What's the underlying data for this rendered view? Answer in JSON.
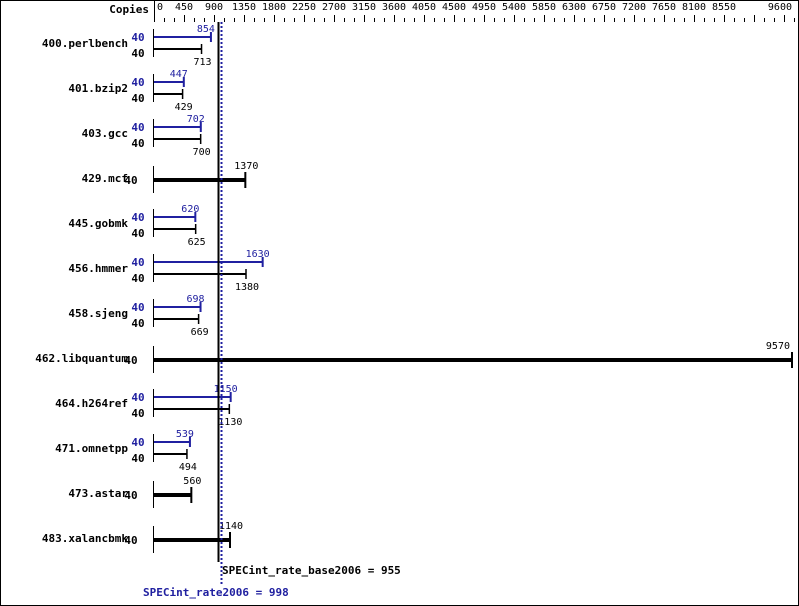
{
  "chart_data": {
    "type": "bar",
    "orientation": "horizontal",
    "axis_label": "Copies",
    "xlim": [
      0,
      9600
    ],
    "ticks": [
      0,
      450,
      900,
      1350,
      1800,
      2250,
      2700,
      3150,
      3600,
      4050,
      4500,
      4950,
      5400,
      5850,
      6300,
      6750,
      7200,
      7650,
      8100,
      8550,
      9600
    ],
    "colors": {
      "base": "#000000",
      "peak": "#2020a0"
    },
    "benchmarks": [
      {
        "name": "400.perlbench",
        "peak_copies": "40",
        "peak": 854,
        "base_copies": "40",
        "base": 713
      },
      {
        "name": "401.bzip2",
        "peak_copies": "40",
        "peak": 447,
        "base_copies": "40",
        "base": 429
      },
      {
        "name": "403.gcc",
        "peak_copies": "40",
        "peak": 702,
        "base_copies": "40",
        "base": 700
      },
      {
        "name": "429.mcf",
        "base_copies": "40",
        "base": 1370
      },
      {
        "name": "445.gobmk",
        "peak_copies": "40",
        "peak": 620,
        "base_copies": "40",
        "base": 625
      },
      {
        "name": "456.hmmer",
        "peak_copies": "40",
        "peak": 1630,
        "base_copies": "40",
        "base": 1380
      },
      {
        "name": "458.sjeng",
        "peak_copies": "40",
        "peak": 698,
        "base_copies": "40",
        "base": 669
      },
      {
        "name": "462.libquantum",
        "base_copies": "40",
        "base": 9570
      },
      {
        "name": "464.h264ref",
        "peak_copies": "40",
        "peak": 1150,
        "base_copies": "40",
        "base": 1130
      },
      {
        "name": "471.omnetpp",
        "peak_copies": "40",
        "peak": 539,
        "base_copies": "40",
        "base": 494
      },
      {
        "name": "473.astar",
        "base_copies": "40",
        "base": 560
      },
      {
        "name": "483.xalancbmk",
        "base_copies": "40",
        "base": 1140
      }
    ],
    "base_summary": {
      "label": "SPECint_rate_base2006 = 955",
      "value": 955
    },
    "peak_summary": {
      "label": "SPECint_rate2006 = 998",
      "value": 998
    }
  }
}
